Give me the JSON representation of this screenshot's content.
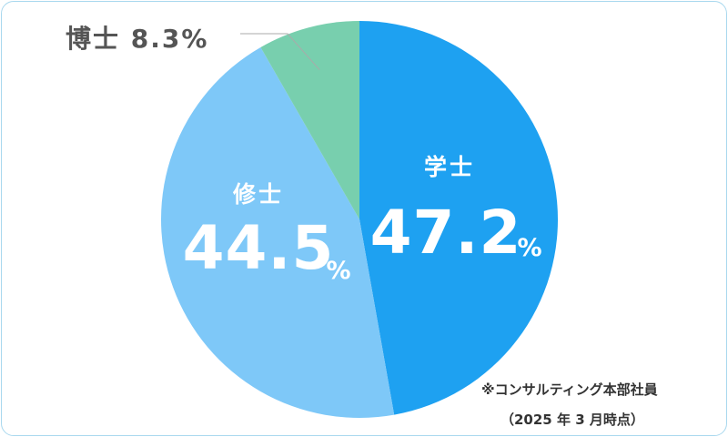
{
  "chart_data": {
    "type": "pie",
    "slices": [
      {
        "label": "学士",
        "value": 47.2,
        "value_text": "47.2",
        "unit": "%",
        "color": "#1ea1f1"
      },
      {
        "label": "修士",
        "value": 44.5,
        "value_text": "44.5",
        "unit": "%",
        "color": "#7ec8f8"
      },
      {
        "label": "博士",
        "value": 8.3,
        "value_text": "8.3",
        "unit": "%",
        "color": "#78cfae"
      }
    ],
    "start": "12 o'clock",
    "direction": "clockwise"
  },
  "footnote": {
    "line1": "※コンサルティング本部社員",
    "line2": "（2025 年 3 月時点）"
  },
  "colors": {
    "label_inside": "#ffffff",
    "label_outside": "#555555",
    "leader": "#aaaaaa",
    "border": "#a9d8ee"
  }
}
